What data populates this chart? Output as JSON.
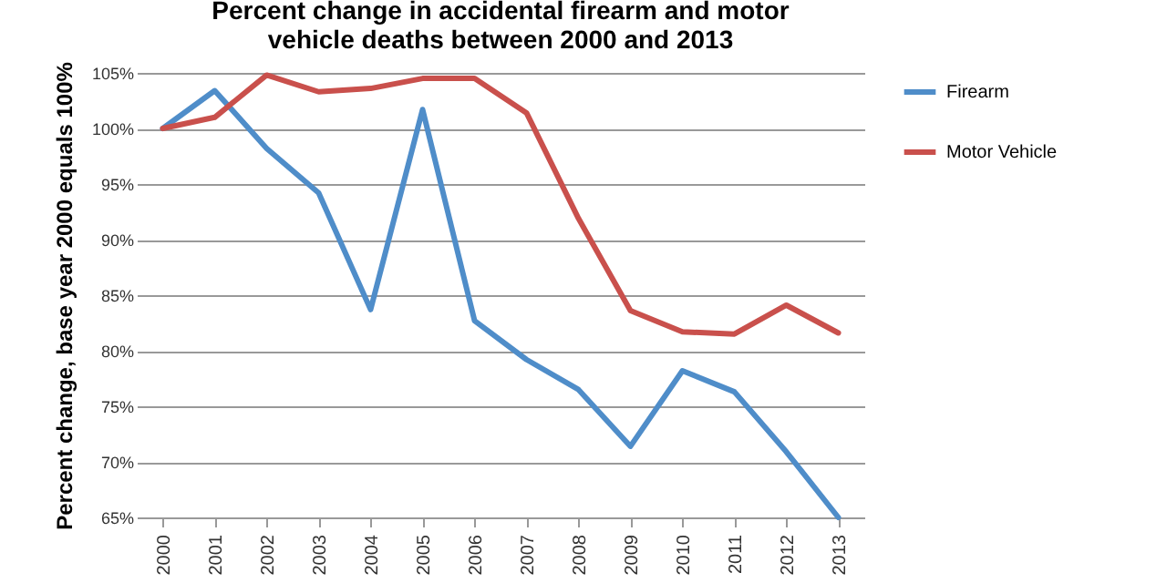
{
  "chart_data": {
    "type": "line",
    "title": "Percent change in accidental firearm and motor vehicle deaths between 2000 and 2013",
    "ylabel": "Percent change, base year 2000 equals 100%",
    "categories": [
      "2000",
      "2001",
      "2002",
      "2003",
      "2004",
      "2005",
      "2006",
      "2007",
      "2008",
      "2009",
      "2010",
      "2011",
      "2012",
      "2013"
    ],
    "series": [
      {
        "name": "Firearm",
        "color": "#4f8dc9",
        "values": [
          100,
          103.4,
          98.2,
          94.2,
          83.7,
          101.7,
          82.7,
          79.2,
          76.5,
          71.4,
          78.2,
          76.3,
          70.9,
          65.0
        ]
      },
      {
        "name": "Motor Vehicle",
        "color": "#c9504c",
        "values": [
          100,
          101,
          104.8,
          103.3,
          103.6,
          104.5,
          104.5,
          101.4,
          91.9,
          83.6,
          81.7,
          81.5,
          84.1,
          81.6
        ]
      }
    ],
    "ylim": [
      65,
      105
    ],
    "yticks": [
      {
        "value": 65,
        "label": "65%"
      },
      {
        "value": 70,
        "label": "70%"
      },
      {
        "value": 75,
        "label": "75%"
      },
      {
        "value": 80,
        "label": "80%"
      },
      {
        "value": 85,
        "label": "85%"
      },
      {
        "value": 90,
        "label": "90%"
      },
      {
        "value": 95,
        "label": "95%"
      },
      {
        "value": 100,
        "label": "100%"
      },
      {
        "value": 105,
        "label": "105%"
      }
    ],
    "grid": "y",
    "legend": "right",
    "marker": "none",
    "line_style": "solid"
  }
}
